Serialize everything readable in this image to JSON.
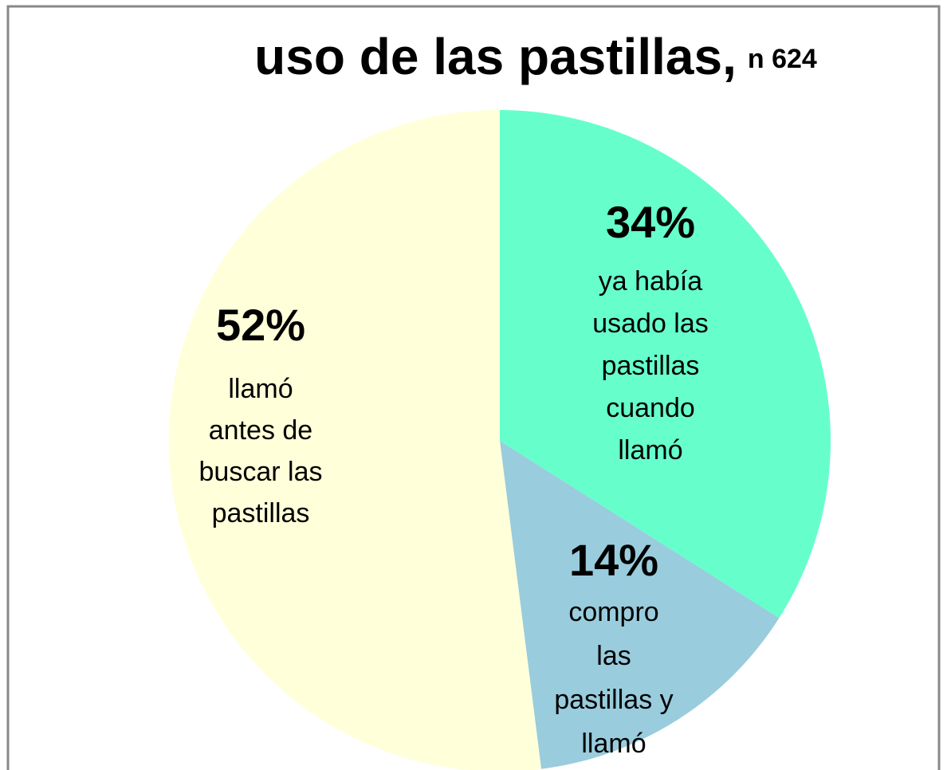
{
  "chart_data": {
    "type": "pie",
    "title": "uso de las pastillas,",
    "subtitle": "n 624",
    "categories": [
      [
        "ya había",
        "usado las",
        "pastillas",
        "cuando",
        "llamó"
      ],
      [
        "compro",
        "las",
        "pastillas y",
        "llamó"
      ],
      [
        "llamó",
        "antes de",
        "buscar las",
        "pastillas"
      ]
    ],
    "values": [
      34,
      14,
      52
    ],
    "value_labels": [
      "34%",
      "14%",
      "52%"
    ],
    "colors": [
      "#66ffcc",
      "#99ccdd",
      "#ffffd9"
    ]
  }
}
